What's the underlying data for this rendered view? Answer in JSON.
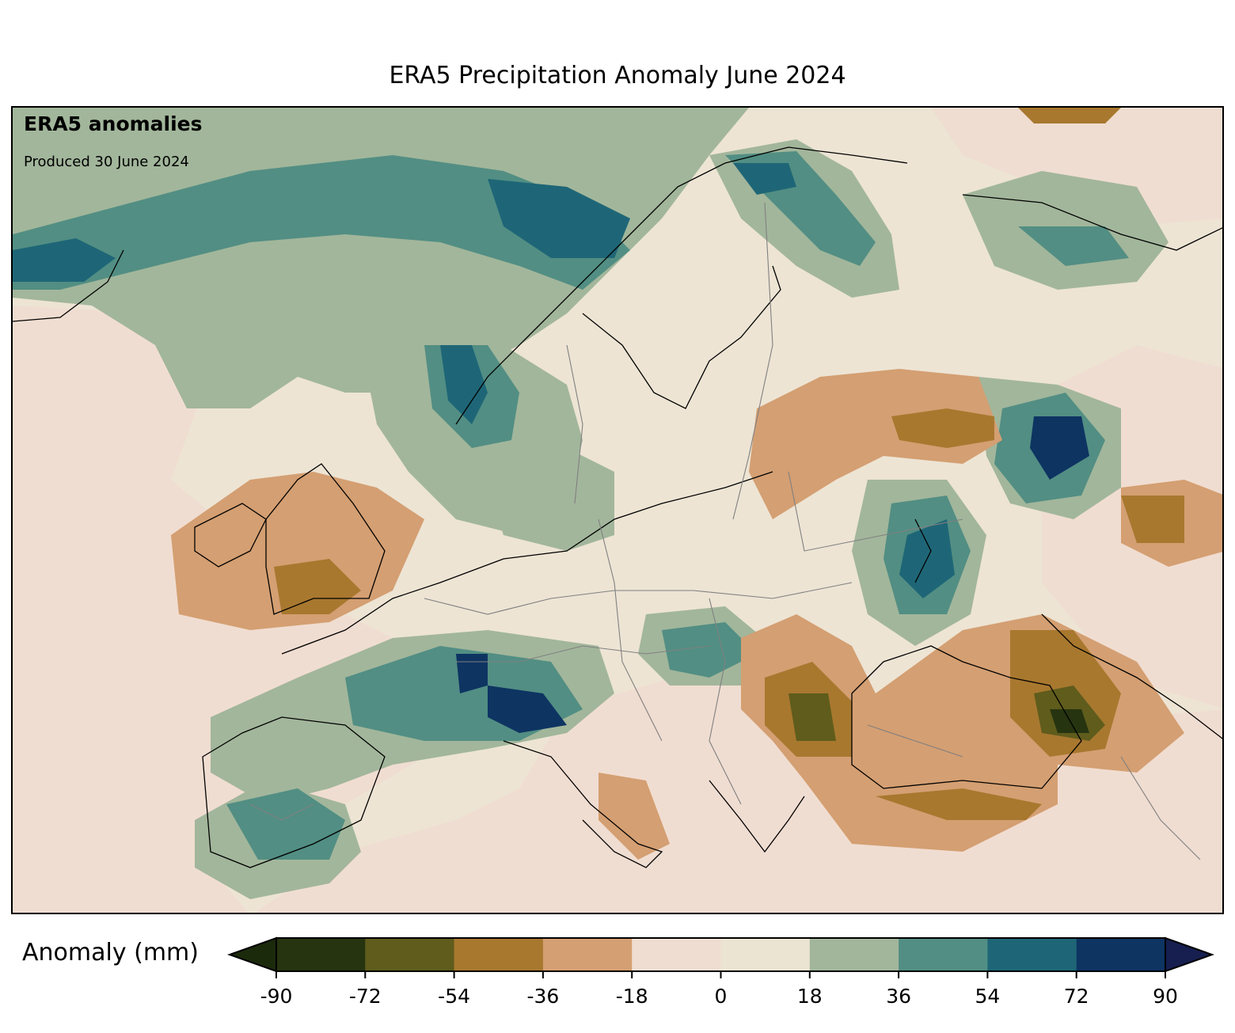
{
  "title": "ERA5 Precipitation Anomaly June 2024",
  "map": {
    "label_main": "ERA5 anomalies",
    "label_sub": "Produced 30 June 2024"
  },
  "colorbar": {
    "label": "Anomaly (mm)",
    "ticks": [
      "-90",
      "-72",
      "-54",
      "-36",
      "-18",
      "0",
      "18",
      "36",
      "54",
      "72",
      "90"
    ],
    "colors": [
      "#263410",
      "#5f5c1c",
      "#a8782f",
      "#d49f72",
      "#f0ddd1",
      "#ece4d3",
      "#a2b69b",
      "#528e83",
      "#1e6677",
      "#0e3462"
    ],
    "under_color": "#1c2a0c",
    "over_color": "#161f4f"
  }
}
